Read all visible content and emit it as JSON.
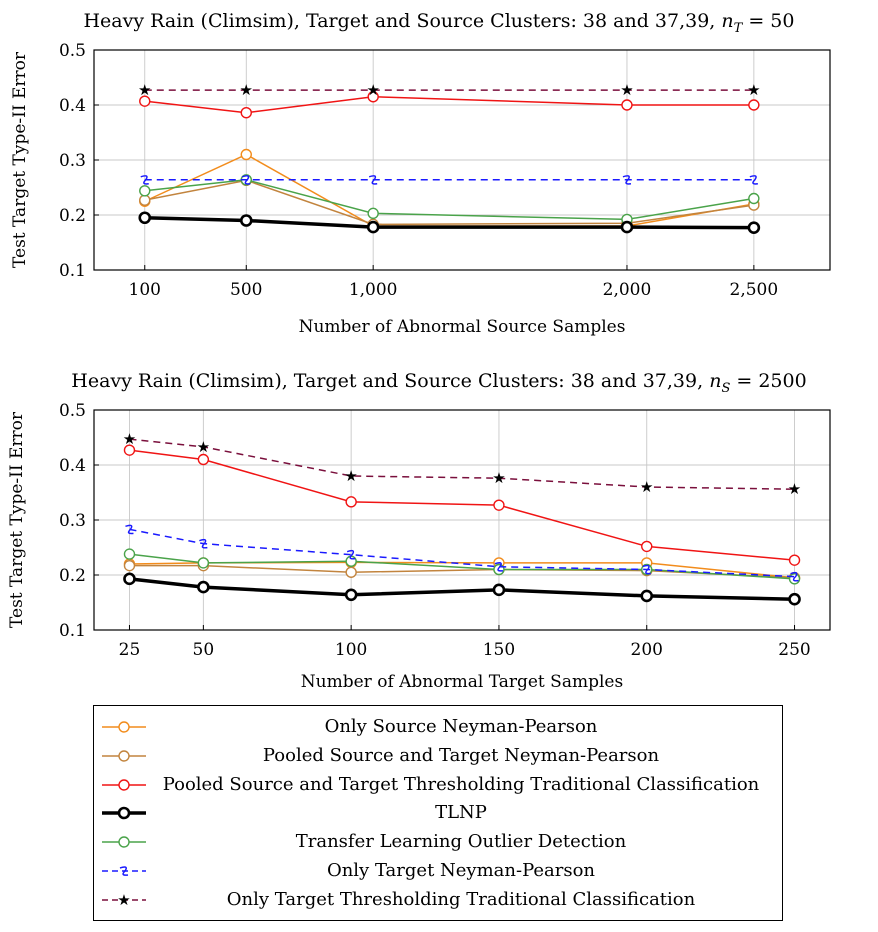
{
  "colors": {
    "only_source": "#f28c1c",
    "pooled_np": "#c2843e",
    "pooled_thresh": "#f01414",
    "tlnp": "#000000",
    "tlod": "#4aa34a",
    "only_target_np": "#1a1aff",
    "only_target_thresh": "#7a0f3c"
  },
  "legend": [
    {
      "key": "only_source",
      "label": "Only Source Neyman-Pearson",
      "marker": "circle",
      "dash": "solid"
    },
    {
      "key": "pooled_np",
      "label": "Pooled Source and Target Neyman-Pearson",
      "marker": "circle",
      "dash": "solid"
    },
    {
      "key": "pooled_thresh",
      "label": "Pooled Source and Target Thresholding Traditional Classification",
      "marker": "circle",
      "dash": "solid"
    },
    {
      "key": "tlnp",
      "label": "TLNP",
      "marker": "circle-thick",
      "dash": "solid"
    },
    {
      "key": "tlod",
      "label": "Transfer Learning Outlier Detection",
      "marker": "circle",
      "dash": "solid"
    },
    {
      "key": "only_target_np",
      "label": "Only Target Neyman-Pearson",
      "marker": "swirl",
      "dash": "dashed"
    },
    {
      "key": "only_target_thresh",
      "label": "Only Target Thresholding Traditional Classification",
      "marker": "star",
      "dash": "dashed"
    }
  ],
  "chart_data": [
    {
      "type": "line",
      "title_main": "Heavy Rain (Climsim), Target and Source Clusters: 38 and 37,39, ",
      "title_var": "n",
      "title_sub": "T",
      "title_tail": " = 50",
      "xlabel": "Number of Abnormal Source Samples",
      "ylabel": "Test Target Type-II Error",
      "x": [
        100,
        500,
        1000,
        2000,
        2500
      ],
      "x_tick_labels": [
        "100",
        "500",
        "1,000",
        "2,000",
        "2,500"
      ],
      "xlim": [
        -100,
        2800
      ],
      "ylim": [
        0.1,
        0.5
      ],
      "y_ticks": [
        0.1,
        0.2,
        0.3,
        0.4,
        0.5
      ],
      "y_tick_labels": [
        "0.1",
        "0.2",
        "0.3",
        "0.4",
        "0.5"
      ],
      "grid": true,
      "series": [
        {
          "key": "only_source",
          "values": [
            0.225,
            0.31,
            0.18,
            0.18,
            0.22
          ]
        },
        {
          "key": "pooled_np",
          "values": [
            0.227,
            0.263,
            0.183,
            0.185,
            0.218
          ]
        },
        {
          "key": "tlod",
          "values": [
            0.244,
            0.264,
            0.203,
            0.192,
            0.23
          ]
        },
        {
          "key": "pooled_thresh",
          "values": [
            0.407,
            0.386,
            0.415,
            0.4,
            0.4
          ]
        },
        {
          "key": "only_target_np",
          "values": [
            0.264,
            0.264,
            0.264,
            0.264,
            0.264
          ]
        },
        {
          "key": "only_target_thresh",
          "values": [
            0.427,
            0.427,
            0.427,
            0.427,
            0.427
          ]
        },
        {
          "key": "tlnp",
          "values": [
            0.195,
            0.19,
            0.178,
            0.178,
            0.177
          ]
        }
      ]
    },
    {
      "type": "line",
      "title_main": "Heavy Rain (Climsim), Target and Source Clusters: 38 and 37,39, ",
      "title_var": "n",
      "title_sub": "S",
      "title_tail": " = 2500",
      "xlabel": "Number of Abnormal Target Samples",
      "ylabel": "Test Target Type-II Error",
      "x": [
        25,
        50,
        100,
        150,
        200,
        250
      ],
      "x_tick_labels": [
        "25",
        "50",
        "100",
        "150",
        "200",
        "250"
      ],
      "xlim": [
        13,
        262
      ],
      "ylim": [
        0.1,
        0.5
      ],
      "y_ticks": [
        0.1,
        0.2,
        0.3,
        0.4,
        0.5
      ],
      "y_tick_labels": [
        "0.1",
        "0.2",
        "0.3",
        "0.4",
        "0.5"
      ],
      "grid": true,
      "series": [
        {
          "key": "only_source",
          "values": [
            0.22,
            0.222,
            0.223,
            0.222,
            0.222,
            0.195
          ]
        },
        {
          "key": "pooled_np",
          "values": [
            0.217,
            0.217,
            0.205,
            0.21,
            0.208,
            0.195
          ]
        },
        {
          "key": "tlod",
          "values": [
            0.238,
            0.222,
            0.225,
            0.21,
            0.21,
            0.193
          ]
        },
        {
          "key": "pooled_thresh",
          "values": [
            0.427,
            0.41,
            0.333,
            0.327,
            0.252,
            0.227
          ]
        },
        {
          "key": "only_target_np",
          "values": [
            0.283,
            0.257,
            0.237,
            0.215,
            0.21,
            0.197
          ]
        },
        {
          "key": "only_target_thresh",
          "values": [
            0.447,
            0.433,
            0.38,
            0.376,
            0.36,
            0.356
          ]
        },
        {
          "key": "tlnp",
          "values": [
            0.193,
            0.178,
            0.164,
            0.173,
            0.162,
            0.156
          ]
        }
      ]
    }
  ]
}
